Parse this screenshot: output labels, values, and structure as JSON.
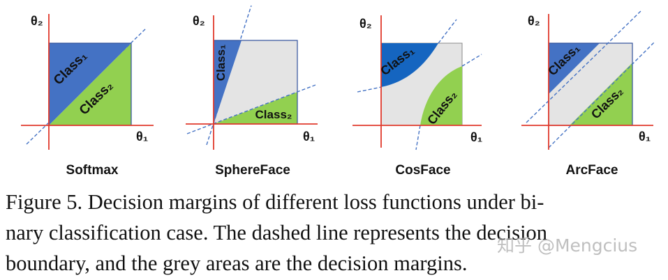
{
  "panels": [
    {
      "title": "Softmax",
      "theta1": "θ₁",
      "theta2": "θ₂",
      "class1": "Class₁",
      "class2": "Class₂"
    },
    {
      "title": "SphereFace",
      "theta1": "θ₁",
      "theta2": "θ₂",
      "class1": "Class₁",
      "class2": "Class₂"
    },
    {
      "title": "CosFace",
      "theta1": "θ₁",
      "theta2": "θ₂",
      "class1": "Class₁",
      "class2": "Class₂"
    },
    {
      "title": "ArcFace",
      "theta1": "θ₁",
      "theta2": "θ₂",
      "class1": "Class₁",
      "class2": "Class₂"
    }
  ],
  "caption": {
    "line1": "Figure 5. Decision margins of different loss functions under bi-",
    "line2": "nary classification case.  The dashed line represents the decision",
    "line3": "boundary, and the grey areas are the decision margins."
  },
  "watermark": "知乎 @Mengcius",
  "colors": {
    "class1": "#4472c4",
    "class1_cosface": "#1565c0",
    "class2": "#92d050",
    "margin": "#e4e4e4",
    "axis": "#e0392b",
    "boundary": "#4472c4"
  }
}
